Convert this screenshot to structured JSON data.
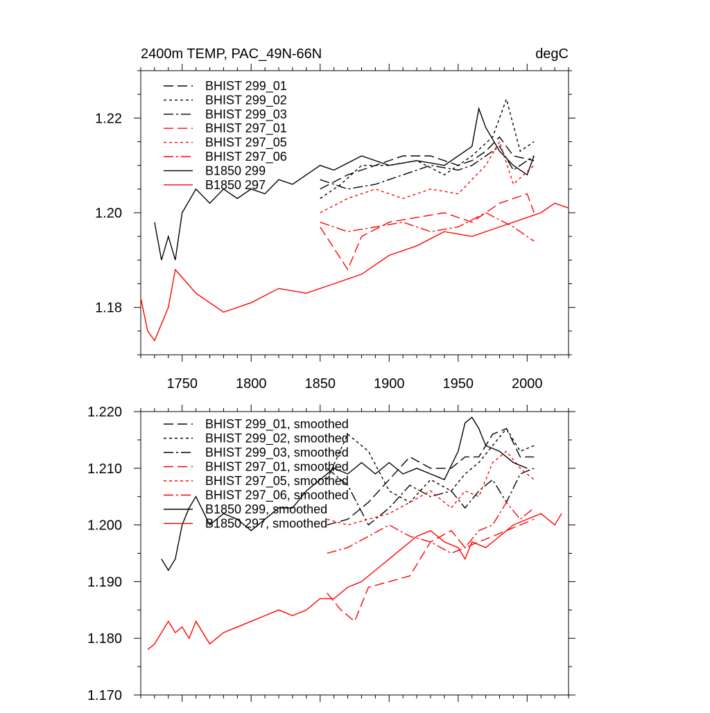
{
  "chart_data": [
    {
      "type": "line",
      "title": "2400m TEMP, PAC_49N-66N",
      "unit_label": "degC",
      "xlim": [
        1720,
        2030
      ],
      "ylim": [
        1.17,
        1.23
      ],
      "x_ticks": [
        1750,
        1800,
        1850,
        1900,
        1950,
        2000
      ],
      "x_tick_labels": [
        "1750",
        "1800",
        "1850",
        "1900",
        "1950",
        "2000"
      ],
      "y_ticks": [
        1.18,
        1.2,
        1.22
      ],
      "y_tick_labels": [
        "1.18",
        "1.20",
        "1.22"
      ],
      "grid": false,
      "legend_position": "top-left",
      "series": [
        {
          "name": "BHIST 299_01",
          "color": "#000000",
          "dash": "dash",
          "x": [
            1850,
            1870,
            1890,
            1910,
            1930,
            1950,
            1960,
            1970,
            1980,
            1990,
            2005
          ],
          "y": [
            1.205,
            1.208,
            1.21,
            1.212,
            1.212,
            1.21,
            1.211,
            1.213,
            1.216,
            1.212,
            1.211
          ]
        },
        {
          "name": "BHIST 299_02",
          "color": "#000000",
          "dash": "dot",
          "x": [
            1850,
            1865,
            1880,
            1900,
            1920,
            1940,
            1960,
            1975,
            1985,
            1995,
            2005
          ],
          "y": [
            1.203,
            1.206,
            1.21,
            1.21,
            1.211,
            1.208,
            1.212,
            1.216,
            1.224,
            1.213,
            1.215
          ]
        },
        {
          "name": "BHIST 299_03",
          "color": "#000000",
          "dash": "dashdot",
          "x": [
            1850,
            1870,
            1890,
            1910,
            1930,
            1950,
            1960,
            1970,
            1980,
            1990,
            2005
          ],
          "y": [
            1.207,
            1.205,
            1.206,
            1.208,
            1.21,
            1.209,
            1.21,
            1.212,
            1.214,
            1.209,
            1.212
          ]
        },
        {
          "name": "BHIST 297_01",
          "color": "#ff0000",
          "dash": "dash",
          "x": [
            1850,
            1870,
            1880,
            1900,
            1920,
            1940,
            1960,
            1980,
            2000,
            2005
          ],
          "y": [
            1.197,
            1.188,
            1.195,
            1.198,
            1.199,
            1.2,
            1.198,
            1.202,
            1.204,
            1.2
          ]
        },
        {
          "name": "BHIST 297_05",
          "color": "#ff0000",
          "dash": "dot",
          "x": [
            1850,
            1870,
            1890,
            1910,
            1930,
            1950,
            1970,
            1980,
            1990,
            2005
          ],
          "y": [
            1.2,
            1.203,
            1.205,
            1.203,
            1.205,
            1.204,
            1.21,
            1.215,
            1.206,
            1.21
          ]
        },
        {
          "name": "BHIST 297_06",
          "color": "#ff0000",
          "dash": "dashdot",
          "x": [
            1850,
            1870,
            1890,
            1910,
            1930,
            1950,
            1970,
            1990,
            2005
          ],
          "y": [
            1.198,
            1.196,
            1.197,
            1.198,
            1.196,
            1.197,
            1.2,
            1.197,
            1.194
          ]
        },
        {
          "name": "B1850 299",
          "color": "#000000",
          "dash": "solid",
          "x": [
            1730,
            1735,
            1740,
            1745,
            1750,
            1760,
            1770,
            1780,
            1790,
            1800,
            1810,
            1820,
            1830,
            1840,
            1850,
            1860,
            1880,
            1900,
            1920,
            1940,
            1960,
            1965,
            1970,
            1980,
            1990,
            2000,
            2005
          ],
          "y": [
            1.198,
            1.19,
            1.195,
            1.19,
            1.2,
            1.205,
            1.202,
            1.205,
            1.203,
            1.205,
            1.204,
            1.207,
            1.206,
            1.208,
            1.21,
            1.209,
            1.212,
            1.21,
            1.211,
            1.21,
            1.214,
            1.222,
            1.218,
            1.213,
            1.21,
            1.208,
            1.212
          ]
        },
        {
          "name": "B1850 297",
          "color": "#ff0000",
          "dash": "solid",
          "x": [
            1720,
            1725,
            1730,
            1740,
            1745,
            1760,
            1780,
            1800,
            1820,
            1840,
            1860,
            1880,
            1900,
            1920,
            1940,
            1960,
            1980,
            2000,
            2010,
            2020,
            2030
          ],
          "y": [
            1.182,
            1.175,
            1.173,
            1.18,
            1.188,
            1.183,
            1.179,
            1.181,
            1.184,
            1.183,
            1.185,
            1.187,
            1.191,
            1.193,
            1.196,
            1.195,
            1.197,
            1.199,
            1.2,
            1.202,
            1.201
          ]
        }
      ]
    },
    {
      "type": "line",
      "title": "",
      "xlim": [
        1720,
        2030
      ],
      "ylim": [
        1.17,
        1.22
      ],
      "y_ticks": [
        1.17,
        1.18,
        1.19,
        1.2,
        1.21,
        1.22
      ],
      "y_tick_labels": [
        "1.170",
        "1.180",
        "1.190",
        "1.200",
        "1.210",
        "1.220"
      ],
      "x_tick_labels": [],
      "grid": false,
      "legend_position": "top-left",
      "series": [
        {
          "name": "BHIST 299_01, smoothed",
          "color": "#000000",
          "dash": "dash",
          "x": [
            1855,
            1870,
            1885,
            1900,
            1915,
            1930,
            1945,
            1955,
            1965,
            1975,
            1985,
            1995,
            2005
          ],
          "y": [
            1.2,
            1.201,
            1.204,
            1.208,
            1.212,
            1.21,
            1.21,
            1.212,
            1.212,
            1.216,
            1.217,
            1.212,
            1.212
          ]
        },
        {
          "name": "BHIST 299_02, smoothed",
          "color": "#000000",
          "dash": "dot",
          "x": [
            1855,
            1870,
            1885,
            1900,
            1915,
            1930,
            1945,
            1955,
            1965,
            1975,
            1985,
            1995,
            2005
          ],
          "y": [
            1.208,
            1.216,
            1.213,
            1.206,
            1.204,
            1.208,
            1.206,
            1.209,
            1.211,
            1.214,
            1.217,
            1.213,
            1.214
          ]
        },
        {
          "name": "BHIST 299_03, smoothed",
          "color": "#000000",
          "dash": "dashdot",
          "x": [
            1855,
            1870,
            1885,
            1900,
            1915,
            1930,
            1945,
            1955,
            1965,
            1975,
            1985,
            1995,
            2005
          ],
          "y": [
            1.21,
            1.207,
            1.2,
            1.203,
            1.207,
            1.205,
            1.206,
            1.203,
            1.206,
            1.208,
            1.204,
            1.209,
            1.21
          ]
        },
        {
          "name": "BHIST 297_01, smoothed",
          "color": "#ff0000",
          "dash": "dash",
          "x": [
            1855,
            1865,
            1875,
            1885,
            1900,
            1915,
            1930,
            1945,
            1955,
            1965,
            1975,
            1985,
            1995,
            2005
          ],
          "y": [
            1.188,
            1.185,
            1.183,
            1.189,
            1.19,
            1.191,
            1.197,
            1.199,
            1.196,
            1.197,
            1.198,
            1.199,
            1.2,
            1.201
          ]
        },
        {
          "name": "BHIST 297_05, smoothed",
          "color": "#ff0000",
          "dash": "dot",
          "x": [
            1855,
            1870,
            1885,
            1900,
            1915,
            1930,
            1945,
            1955,
            1965,
            1975,
            1985,
            1995,
            2005
          ],
          "y": [
            1.201,
            1.2,
            1.201,
            1.202,
            1.204,
            1.206,
            1.203,
            1.206,
            1.205,
            1.211,
            1.213,
            1.21,
            1.208
          ]
        },
        {
          "name": "BHIST 297_06, smoothed",
          "color": "#ff0000",
          "dash": "dashdot",
          "x": [
            1855,
            1870,
            1885,
            1900,
            1915,
            1930,
            1945,
            1955,
            1965,
            1975,
            1985,
            1995,
            2005
          ],
          "y": [
            1.195,
            1.196,
            1.198,
            1.2,
            1.198,
            1.197,
            1.195,
            1.196,
            1.199,
            1.2,
            1.204,
            1.201,
            1.203
          ]
        },
        {
          "name": "B1850 299, smoothed",
          "color": "#000000",
          "dash": "solid",
          "x": [
            1735,
            1740,
            1745,
            1750,
            1755,
            1760,
            1770,
            1780,
            1790,
            1800,
            1810,
            1820,
            1830,
            1840,
            1850,
            1860,
            1870,
            1880,
            1890,
            1900,
            1910,
            1920,
            1930,
            1940,
            1950,
            1955,
            1960,
            1965,
            1970,
            1980,
            1990,
            2000
          ],
          "y": [
            1.194,
            1.192,
            1.194,
            1.2,
            1.203,
            1.205,
            1.2,
            1.202,
            1.201,
            1.199,
            1.201,
            1.203,
            1.203,
            1.206,
            1.208,
            1.21,
            1.209,
            1.211,
            1.209,
            1.211,
            1.209,
            1.21,
            1.209,
            1.208,
            1.213,
            1.218,
            1.219,
            1.217,
            1.214,
            1.213,
            1.211,
            1.21
          ]
        },
        {
          "name": "B1850 297, smoothed",
          "color": "#ff0000",
          "dash": "solid",
          "x": [
            1725,
            1730,
            1735,
            1740,
            1745,
            1750,
            1755,
            1760,
            1770,
            1780,
            1790,
            1800,
            1810,
            1820,
            1830,
            1840,
            1850,
            1860,
            1870,
            1880,
            1890,
            1900,
            1910,
            1920,
            1930,
            1940,
            1950,
            1955,
            1960,
            1970,
            1980,
            1990,
            2000,
            2010,
            2020,
            2025
          ],
          "y": [
            1.178,
            1.179,
            1.181,
            1.183,
            1.181,
            1.182,
            1.18,
            1.183,
            1.179,
            1.181,
            1.182,
            1.183,
            1.184,
            1.185,
            1.184,
            1.185,
            1.187,
            1.187,
            1.189,
            1.19,
            1.192,
            1.194,
            1.196,
            1.198,
            1.199,
            1.197,
            1.196,
            1.194,
            1.197,
            1.196,
            1.198,
            1.2,
            1.201,
            1.202,
            1.2,
            1.202
          ]
        }
      ]
    }
  ]
}
